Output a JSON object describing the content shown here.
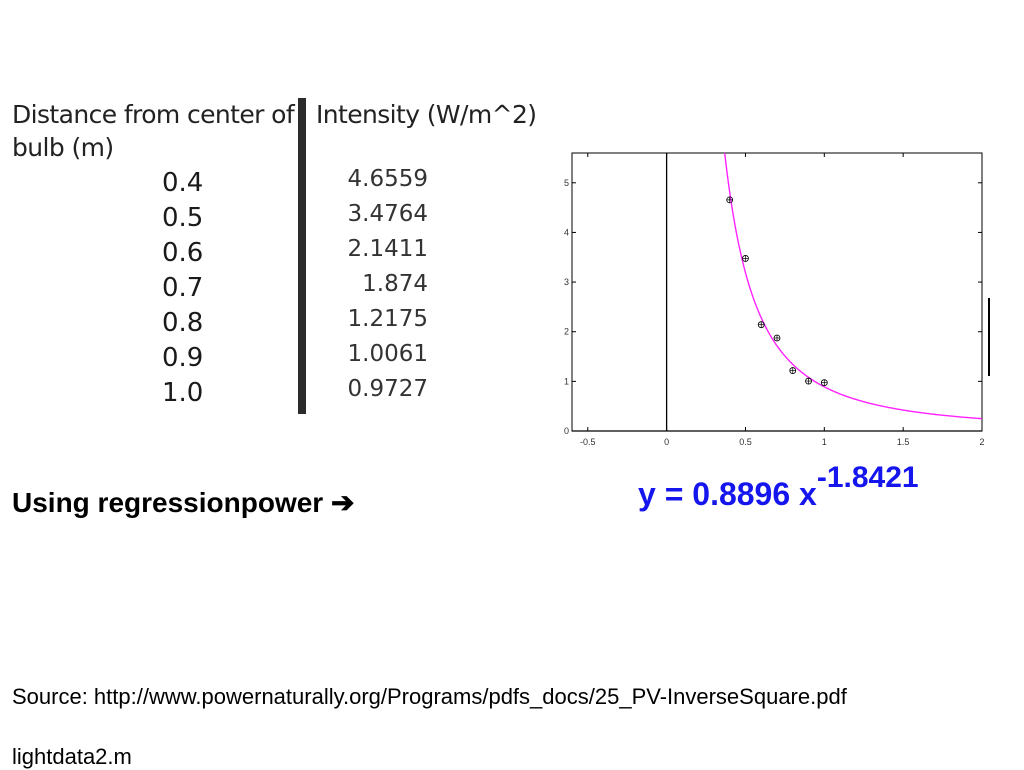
{
  "table": {
    "distance_header": "Distance from center of bulb (m)",
    "intensity_header": "Intensity (W/m^2)",
    "rows": [
      {
        "distance": "0.4",
        "intensity": "4.6559"
      },
      {
        "distance": "0.5",
        "intensity": "3.4764"
      },
      {
        "distance": "0.6",
        "intensity": "2.1411"
      },
      {
        "distance": "0.7",
        "intensity": "1.874"
      },
      {
        "distance": "0.8",
        "intensity": "1.2175"
      },
      {
        "distance": "0.9",
        "intensity": "1.0061"
      },
      {
        "distance": "1.0",
        "intensity": "0.9727"
      }
    ]
  },
  "chart_data": {
    "type": "scatter",
    "title": "",
    "xlabel": "",
    "ylabel": "",
    "xlim": [
      -0.6,
      2
    ],
    "ylim": [
      0,
      5.6
    ],
    "xticks": [
      "-0.5",
      "0",
      "0.5",
      "1",
      "1.5",
      "2"
    ],
    "yticks": [
      "0",
      "1",
      "2",
      "3",
      "4",
      "5"
    ],
    "grid": false,
    "points": {
      "x": [
        0.4,
        0.5,
        0.6,
        0.7,
        0.8,
        0.9,
        1.0
      ],
      "y": [
        4.6559,
        3.4764,
        2.1411,
        1.874,
        1.2175,
        1.0061,
        0.9727
      ]
    },
    "fit": {
      "type": "power",
      "coefficient": 0.8896,
      "exponent": -1.8421
    },
    "colors": {
      "points": "#000000",
      "fit": "#ff22ff",
      "axes": "#000000"
    }
  },
  "caption": {
    "text": "Using regressionpower ",
    "arrow": "➔"
  },
  "equation": {
    "lhs": "y = 0.8896 x",
    "exponent": "-1.8421",
    "color": "#1515ee"
  },
  "source": "Source: http://www.powernaturally.org/Programs/pdfs_docs/25_PV-InverseSquare.pdf",
  "file": "lightdata2.m"
}
